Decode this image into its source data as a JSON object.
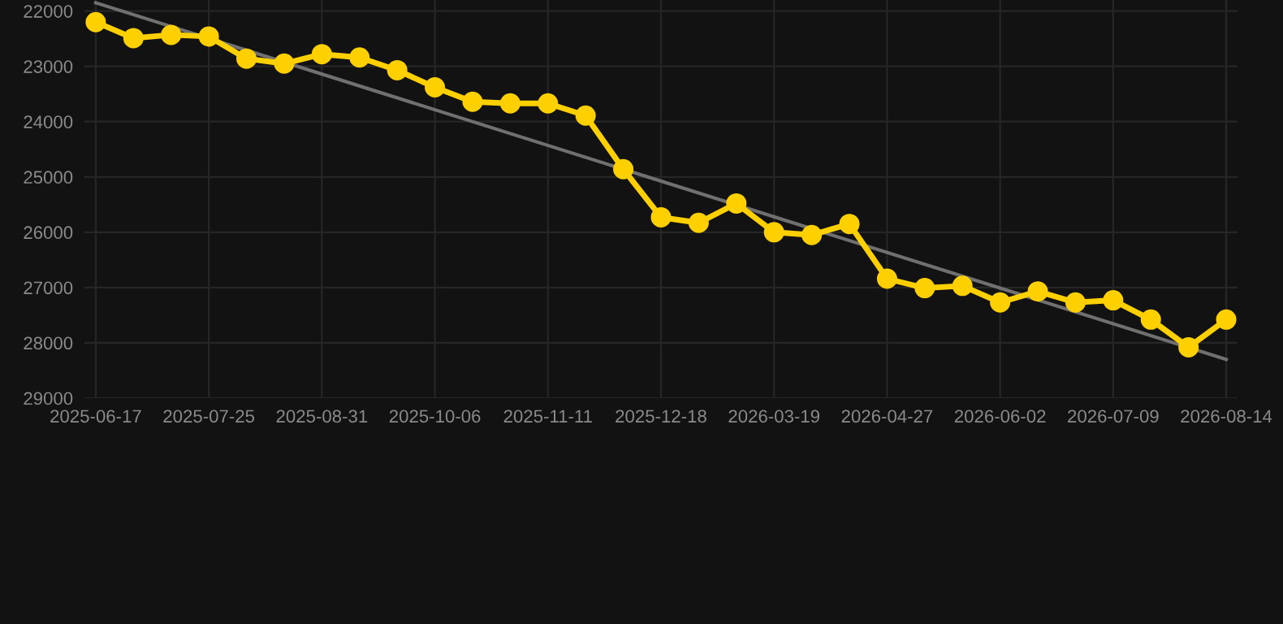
{
  "chart_data": {
    "type": "line",
    "categories": [
      "2025-06-17",
      null,
      null,
      "2025-07-25",
      null,
      null,
      "2025-08-31",
      null,
      null,
      "2025-10-06",
      null,
      null,
      "2025-11-11",
      null,
      null,
      "2025-12-18",
      null,
      null,
      "2026-03-19",
      null,
      null,
      "2026-04-27",
      null,
      null,
      "2026-06-02",
      null,
      null,
      "2026-07-09",
      null,
      null,
      "2026-08-14"
    ],
    "series": [
      {
        "color": "#ffd000",
        "marker": "circle",
        "values": [
          22200,
          22490,
          22430,
          22460,
          22860,
          22950,
          22780,
          22840,
          23070,
          23380,
          23640,
          23670,
          23670,
          23890,
          24860,
          25730,
          25830,
          25480,
          26000,
          26050,
          25850,
          26840,
          27010,
          26970,
          27270,
          27070,
          27270,
          27230,
          27580,
          28080,
          27580
        ]
      },
      {
        "color": "#707070",
        "marker": "none",
        "values": [
          21850,
          null,
          null,
          null,
          null,
          null,
          null,
          null,
          null,
          null,
          null,
          null,
          null,
          null,
          null,
          null,
          null,
          null,
          null,
          null,
          null,
          null,
          null,
          null,
          null,
          null,
          null,
          null,
          null,
          null,
          28300
        ]
      }
    ],
    "ylim": [
      29000,
      21800
    ],
    "yticks": [
      22000,
      23000,
      24000,
      25000,
      26000,
      27000,
      28000,
      29000
    ],
    "grid": true,
    "line_style": "solid"
  }
}
